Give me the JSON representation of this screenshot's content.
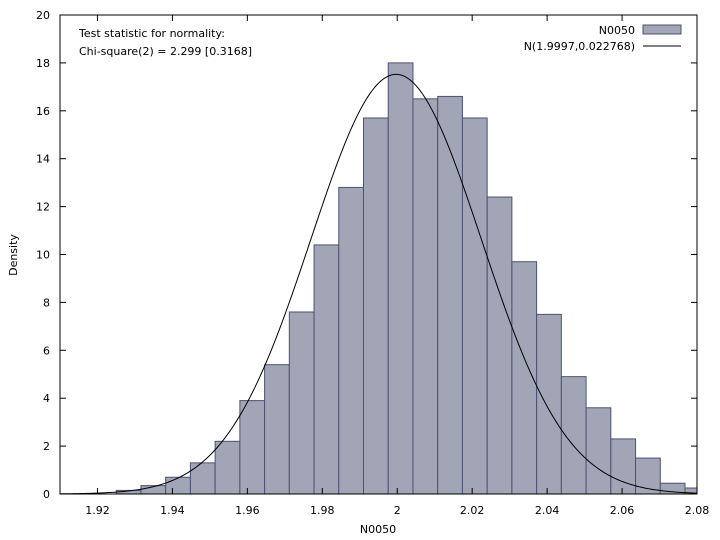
{
  "chart_data": {
    "type": "bar",
    "xlabel": "N0050",
    "ylabel": "Density",
    "xlim": [
      1.91,
      2.08
    ],
    "ylim": [
      0,
      20
    ],
    "xticks": [
      "1.92",
      "1.94",
      "1.96",
      "1.98",
      "2",
      "2.02",
      "2.04",
      "2.06",
      "2.08"
    ],
    "yticks": [
      "0",
      "2",
      "4",
      "6",
      "8",
      "10",
      "12",
      "14",
      "16",
      "18",
      "20"
    ],
    "annotations": [
      "Test statistic for normality:",
      "Chi-square(2) = 2.299 [0.3168]"
    ],
    "legend": {
      "position": "top-right",
      "entries": [
        "N0050",
        "N(1.9997,0.022768)"
      ]
    },
    "grid": false,
    "bin_width": 0.0066,
    "bins": [
      {
        "x": 1.9283,
        "y": 0.15
      },
      {
        "x": 1.9349,
        "y": 0.35
      },
      {
        "x": 1.9415,
        "y": 0.7
      },
      {
        "x": 1.9481,
        "y": 1.3
      },
      {
        "x": 1.9547,
        "y": 2.2
      },
      {
        "x": 1.9613,
        "y": 3.9
      },
      {
        "x": 1.9679,
        "y": 5.4
      },
      {
        "x": 1.9745,
        "y": 7.6
      },
      {
        "x": 1.9811,
        "y": 10.4
      },
      {
        "x": 1.9877,
        "y": 12.8
      },
      {
        "x": 1.9943,
        "y": 15.7
      },
      {
        "x": 2.0009,
        "y": 18.0
      },
      {
        "x": 2.0075,
        "y": 16.5
      },
      {
        "x": 2.0141,
        "y": 16.6
      },
      {
        "x": 2.0207,
        "y": 15.7
      },
      {
        "x": 2.0273,
        "y": 12.4
      },
      {
        "x": 2.0339,
        "y": 9.7
      },
      {
        "x": 2.0405,
        "y": 7.5
      },
      {
        "x": 2.0471,
        "y": 4.9
      },
      {
        "x": 2.0537,
        "y": 3.6
      },
      {
        "x": 2.0603,
        "y": 2.3
      },
      {
        "x": 2.0669,
        "y": 1.5
      },
      {
        "x": 2.0735,
        "y": 0.45
      },
      {
        "x": 2.0801,
        "y": 0.25
      },
      {
        "x": 2.0867,
        "y": 0.1
      }
    ],
    "normal_fit": {
      "mean": 1.9997,
      "sd": 0.022768
    },
    "colors": {
      "bar_fill": "#a1a5b5",
      "bar_stroke": "#4b5372",
      "curve": "#000000"
    }
  }
}
